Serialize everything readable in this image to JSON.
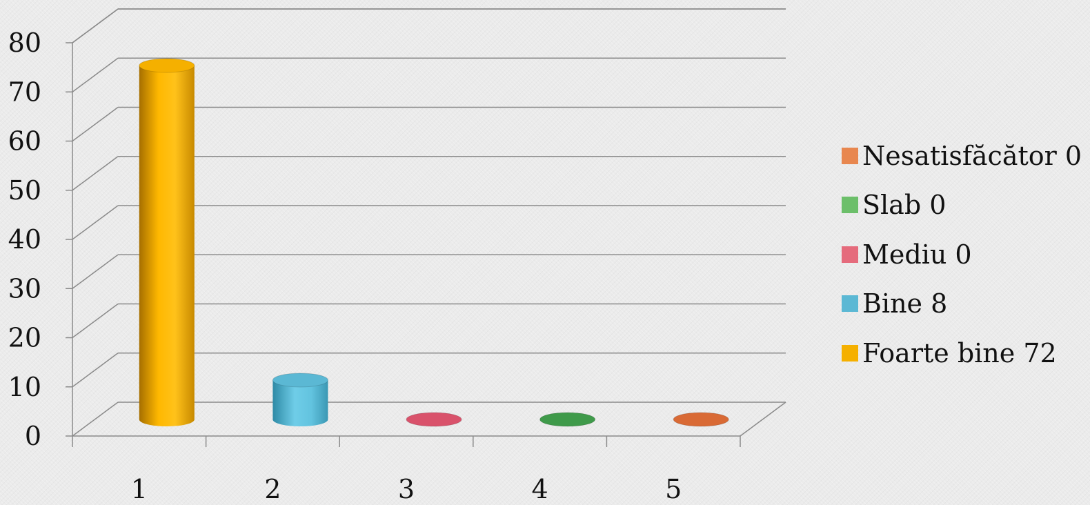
{
  "chart_data": {
    "type": "bar",
    "style": "3d-cylinder",
    "categories": [
      "1",
      "2",
      "3",
      "4",
      "5"
    ],
    "values": [
      72,
      8,
      0,
      0,
      0
    ],
    "series_colors": [
      "#f5b000",
      "#5bb8d4",
      "#d9526b",
      "#3f9a4a",
      "#d96a35"
    ],
    "ylim": [
      0,
      80
    ],
    "yticks": [
      "0",
      "10",
      "20",
      "30",
      "40",
      "50",
      "60",
      "70",
      "80"
    ],
    "grid": true,
    "legend_position": "right",
    "legend": [
      {
        "label": "Nesatisfăcător 0",
        "color": "#e8874f"
      },
      {
        "label": "Slab 0",
        "color": "#6cbf6a"
      },
      {
        "label": "Mediu 0",
        "color": "#e56b7c"
      },
      {
        "label": "Bine 8",
        "color": "#5bb8d4"
      },
      {
        "label": "Foarte bine 72",
        "color": "#f5b000"
      }
    ]
  }
}
